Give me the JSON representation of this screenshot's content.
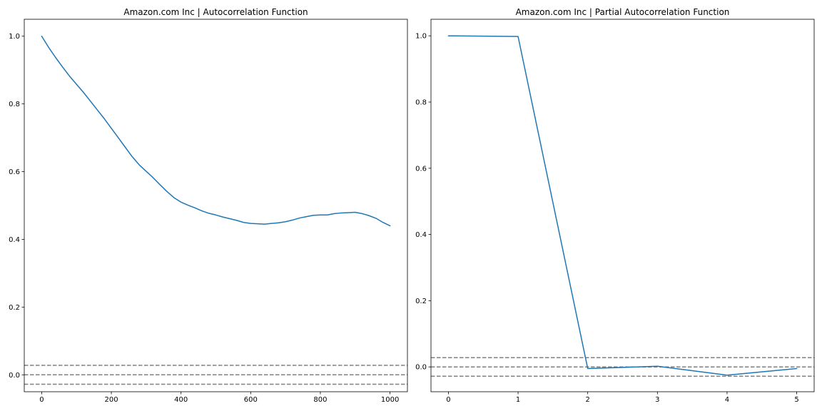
{
  "colors": {
    "series": "#1f77b4",
    "reference": "#808080"
  },
  "chart_data": [
    {
      "type": "line",
      "title": "Amazon.com Inc | Autocorrelation Function",
      "xlim": [
        -50,
        1050
      ],
      "ylim": [
        -0.05,
        1.05
      ],
      "xticks": [
        0,
        200,
        400,
        600,
        800,
        1000
      ],
      "xtick_labels": [
        "0",
        "200",
        "400",
        "600",
        "800",
        "1000"
      ],
      "yticks": [
        0.0,
        0.2,
        0.4,
        0.6,
        0.8,
        1.0
      ],
      "ytick_labels": [
        "0.0",
        "0.2",
        "0.4",
        "0.6",
        "0.8",
        "1.0"
      ],
      "reference_lines": [
        0.028,
        0.0,
        -0.028
      ],
      "grid": false,
      "series": [
        {
          "x": [
            0,
            20,
            40,
            60,
            80,
            100,
            120,
            140,
            160,
            180,
            200,
            220,
            240,
            260,
            280,
            300,
            320,
            340,
            360,
            380,
            400,
            420,
            440,
            460,
            480,
            500,
            520,
            540,
            560,
            580,
            600,
            620,
            640,
            660,
            680,
            700,
            720,
            740,
            760,
            780,
            800,
            820,
            840,
            860,
            880,
            900,
            920,
            940,
            960,
            980,
            1000
          ],
          "values": [
            1.0,
            0.967,
            0.937,
            0.909,
            0.882,
            0.858,
            0.834,
            0.808,
            0.782,
            0.756,
            0.728,
            0.7,
            0.672,
            0.644,
            0.62,
            0.601,
            0.582,
            0.561,
            0.541,
            0.523,
            0.51,
            0.501,
            0.493,
            0.484,
            0.477,
            0.472,
            0.466,
            0.461,
            0.456,
            0.45,
            0.447,
            0.446,
            0.445,
            0.447,
            0.449,
            0.452,
            0.457,
            0.463,
            0.467,
            0.471,
            0.472,
            0.472,
            0.476,
            0.478,
            0.479,
            0.48,
            0.476,
            0.47,
            0.462,
            0.45,
            0.44
          ]
        }
      ]
    },
    {
      "type": "line",
      "title": "Amazon.com Inc | Partial Autocorrelation Function",
      "xlim": [
        -0.25,
        5.25
      ],
      "ylim": [
        -0.075,
        1.05
      ],
      "xticks": [
        0,
        1,
        2,
        3,
        4,
        5
      ],
      "xtick_labels": [
        "0",
        "1",
        "2",
        "3",
        "4",
        "5"
      ],
      "yticks": [
        0.0,
        0.2,
        0.4,
        0.6,
        0.8,
        1.0
      ],
      "ytick_labels": [
        "0.0",
        "0.2",
        "0.4",
        "0.6",
        "0.8",
        "1.0"
      ],
      "reference_lines": [
        0.028,
        0.0,
        -0.028
      ],
      "grid": false,
      "series": [
        {
          "x": [
            0,
            1,
            2,
            3,
            4,
            5
          ],
          "values": [
            1.0,
            0.998,
            -0.005,
            0.002,
            -0.025,
            -0.005
          ]
        }
      ]
    }
  ]
}
